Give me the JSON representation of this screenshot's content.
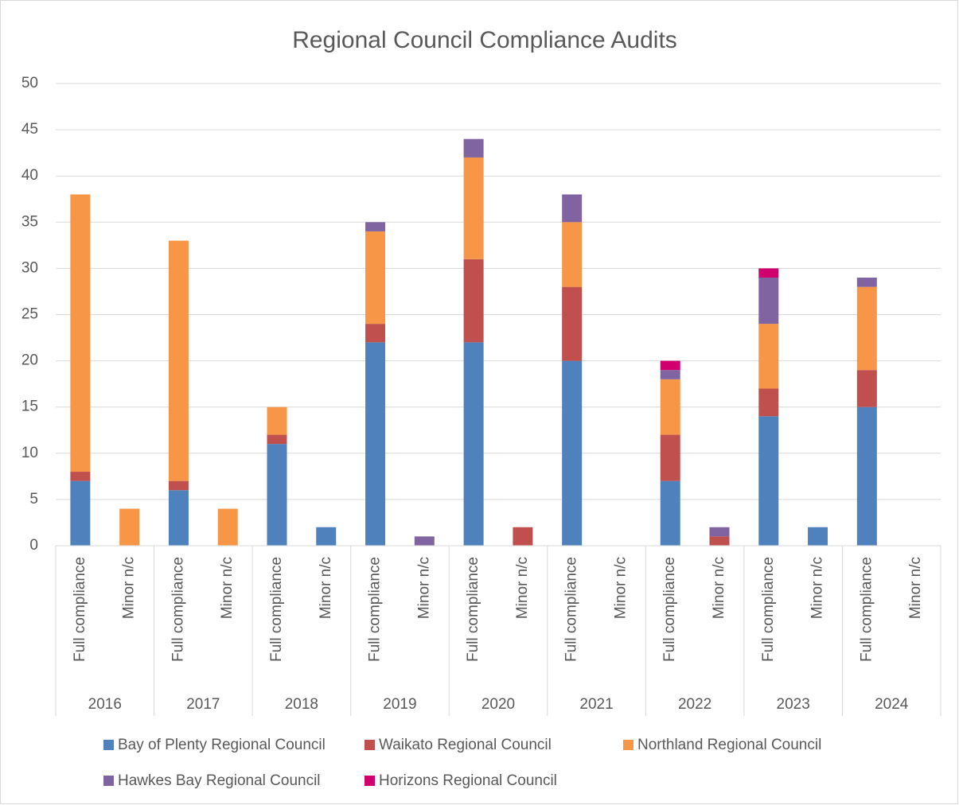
{
  "chart_data": {
    "type": "stacked_bar",
    "title": "Regional Council Compliance Audits",
    "categories": [
      "Full compliance",
      "Minor n/c",
      "Full compliance",
      "Minor n/c",
      "Full compliance",
      "Minor n/c",
      "Full compliance",
      "Minor n/c",
      "Full compliance",
      "Minor n/c",
      "Full compliance",
      "Minor n/c",
      "Full compliance",
      "Minor n/c",
      "Full compliance",
      "Minor n/c",
      "Full compliance",
      "Minor n/c"
    ],
    "groups": [
      "2016",
      "2017",
      "2018",
      "2019",
      "2020",
      "2021",
      "2022",
      "2023",
      "2024"
    ],
    "series": [
      {
        "name": "Bay of Plenty Regional Council",
        "color": "#4f81bd",
        "values": [
          7,
          0,
          6,
          0,
          11,
          2,
          22,
          0,
          22,
          0,
          20,
          0,
          7,
          0,
          14,
          2,
          15,
          0
        ]
      },
      {
        "name": "Waikato Regional Council",
        "color": "#c0504d",
        "values": [
          1,
          0,
          1,
          0,
          1,
          0,
          2,
          0,
          9,
          2,
          8,
          0,
          5,
          1,
          3,
          0,
          4,
          0
        ]
      },
      {
        "name": "Northland Regional Council",
        "color": "#f79646",
        "values": [
          30,
          4,
          26,
          4,
          3,
          0,
          10,
          0,
          11,
          0,
          7,
          0,
          6,
          0,
          7,
          0,
          9,
          0
        ]
      },
      {
        "name": "Hawkes Bay Regional Council",
        "color": "#8064a2",
        "values": [
          0,
          0,
          0,
          0,
          0,
          0,
          1,
          1,
          2,
          0,
          3,
          0,
          1,
          1,
          5,
          0,
          1,
          0
        ]
      },
      {
        "name": "Horizons Regional Council",
        "color": "#d0006f",
        "values": [
          0,
          0,
          0,
          0,
          0,
          0,
          0,
          0,
          0,
          0,
          0,
          0,
          1,
          0,
          1,
          0,
          0,
          0
        ]
      }
    ],
    "ylim": [
      0,
      50
    ],
    "yticks": [
      0,
      5,
      10,
      15,
      20,
      25,
      30,
      35,
      40,
      45,
      50
    ],
    "grid": true,
    "legend": "bottom"
  }
}
